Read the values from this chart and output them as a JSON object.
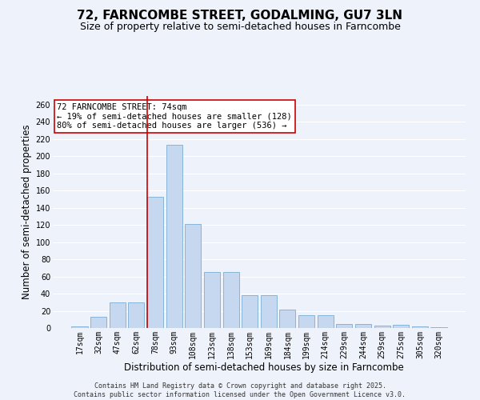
{
  "title": "72, FARNCOMBE STREET, GODALMING, GU7 3LN",
  "subtitle": "Size of property relative to semi-detached houses in Farncombe",
  "xlabel": "Distribution of semi-detached houses by size in Farncombe",
  "ylabel": "Number of semi-detached properties",
  "bar_labels": [
    "17sqm",
    "32sqm",
    "47sqm",
    "62sqm",
    "78sqm",
    "93sqm",
    "108sqm",
    "123sqm",
    "138sqm",
    "153sqm",
    "169sqm",
    "184sqm",
    "199sqm",
    "214sqm",
    "229sqm",
    "244sqm",
    "259sqm",
    "275sqm",
    "305sqm",
    "320sqm"
  ],
  "bar_values": [
    2,
    13,
    30,
    30,
    153,
    213,
    121,
    65,
    65,
    38,
    38,
    21,
    15,
    15,
    5,
    5,
    3,
    4,
    2,
    1
  ],
  "bar_color": "#c5d8f0",
  "bar_edge_color": "#7aadd4",
  "background_color": "#eef2fa",
  "grid_color": "#ffffff",
  "annotation_text": "72 FARNCOMBE STREET: 74sqm\n← 19% of semi-detached houses are smaller (128)\n80% of semi-detached houses are larger (536) →",
  "vline_x_index": 4,
  "vline_color": "#cc0000",
  "annot_box_color": "white",
  "annot_box_edge": "#cc0000",
  "footnote": "Contains HM Land Registry data © Crown copyright and database right 2025.\nContains public sector information licensed under the Open Government Licence v3.0.",
  "ylim": [
    0,
    270
  ],
  "title_fontsize": 11,
  "subtitle_fontsize": 9,
  "axis_label_fontsize": 8.5,
  "tick_fontsize": 7,
  "annot_fontsize": 7.5,
  "footnote_fontsize": 6
}
